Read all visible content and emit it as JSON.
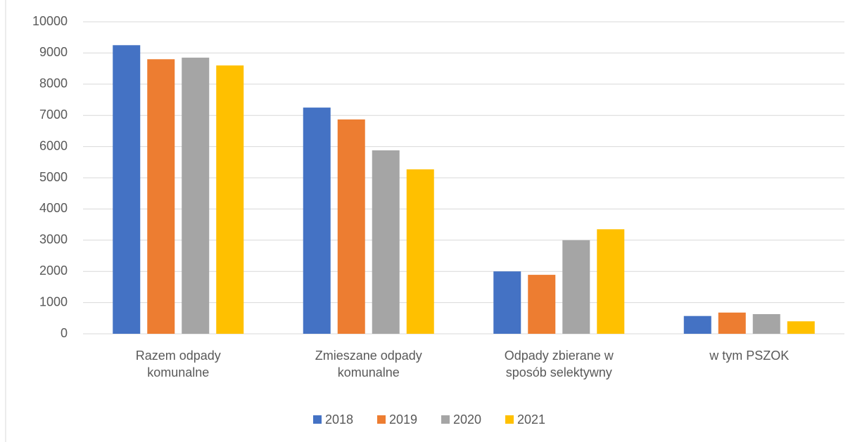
{
  "chart_data": {
    "type": "bar",
    "categories": [
      "Razem odpady komunalne",
      "Zmieszane odpady komunalne",
      "Odpady zbierane w sposób selektywny",
      "w tym PSZOK"
    ],
    "series": [
      {
        "name": "2018",
        "color": "#4472c4",
        "values": [
          9250,
          7250,
          2000,
          570
        ]
      },
      {
        "name": "2019",
        "color": "#ed7d31",
        "values": [
          8800,
          6870,
          1890,
          680
        ]
      },
      {
        "name": "2020",
        "color": "#a5a5a5",
        "values": [
          8850,
          5880,
          3000,
          630
        ]
      },
      {
        "name": "2021",
        "color": "#ffc000",
        "values": [
          8600,
          5270,
          3350,
          400
        ]
      }
    ],
    "ylim": [
      0,
      10000
    ],
    "yticks": [
      0,
      1000,
      2000,
      3000,
      4000,
      5000,
      6000,
      7000,
      8000,
      9000,
      10000
    ],
    "grid": true,
    "legend": "bottom"
  }
}
